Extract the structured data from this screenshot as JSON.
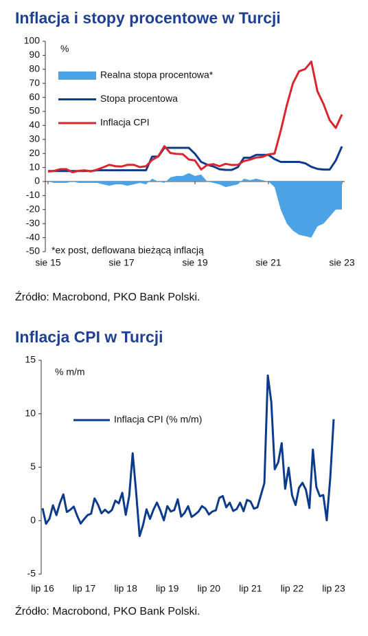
{
  "chart_data": [
    {
      "type": "line",
      "title": "Inflacja i stopy procentowe w Turcji",
      "unit_label": "%",
      "annotation": "*ex post, deflowana bieżącą inflacją",
      "source": "Źródło: Macrobond, PKO Bank Polski.",
      "categories": [
        "sie 15",
        null,
        null,
        null,
        null,
        null,
        null,
        null,
        null,
        null,
        null,
        null,
        "sie 17",
        null,
        null,
        null,
        null,
        null,
        null,
        null,
        null,
        null,
        null,
        null,
        "sie 19",
        null,
        null,
        null,
        null,
        null,
        null,
        null,
        null,
        null,
        null,
        null,
        "sie 21",
        null,
        null,
        null,
        null,
        null,
        null,
        null,
        null,
        null,
        null,
        null,
        "sie 23"
      ],
      "series": [
        {
          "name": "Realna stopa procentowa*",
          "color": "#4ba3e6",
          "kind": "area",
          "values": [
            0,
            -1,
            -1,
            -1,
            0,
            -1,
            -1,
            -1,
            -1,
            -2,
            -3,
            -2,
            -2,
            -3,
            -2,
            -1,
            -2,
            2,
            0,
            -1,
            3,
            4,
            4,
            6,
            4,
            5,
            0,
            -1,
            -2,
            -4,
            -3,
            -2,
            2,
            1,
            2,
            1,
            0,
            -4,
            -20,
            -30,
            -35,
            -38,
            -39,
            -40,
            -32,
            -30,
            -25,
            -20,
            -20
          ]
        },
        {
          "name": "Stopa procentowa",
          "color": "#0c3b8c",
          "kind": "line",
          "values": [
            7.5,
            7.5,
            7.5,
            7.5,
            7.5,
            7.5,
            7.5,
            7.5,
            8,
            8,
            8,
            8,
            8,
            8,
            8,
            8,
            8,
            17.75,
            17.75,
            24,
            24,
            24,
            24,
            24,
            19.75,
            14,
            12,
            10.75,
            8.75,
            8.25,
            8.25,
            10.25,
            17,
            17,
            19,
            19,
            19,
            16,
            14,
            14,
            14,
            14,
            13,
            10.5,
            9,
            8.5,
            8.5,
            15,
            25
          ]
        },
        {
          "name": "Inflacja CPI",
          "color": "#d9262e",
          "kind": "line",
          "values": [
            7.1,
            7.6,
            8.8,
            8.8,
            6.6,
            7.6,
            8.0,
            7.2,
            8.5,
            10.1,
            11.9,
            10.9,
            10.7,
            11.9,
            11.9,
            10.3,
            10.9,
            15.4,
            17.9,
            25.2,
            20.3,
            19.7,
            19.5,
            15.7,
            15.0,
            8.6,
            11.8,
            12.4,
            10.9,
            12.6,
            11.8,
            11.9,
            14.6,
            15.6,
            17.1,
            17.5,
            19.3,
            19.9,
            36.1,
            54.4,
            70.0,
            78.6,
            80.2,
            85.5,
            64.3,
            55.2,
            43.7,
            38.2,
            47.8
          ]
        }
      ],
      "ylim": [
        -50,
        100
      ],
      "yticks": [
        -50,
        -40,
        -30,
        -20,
        -10,
        0,
        10,
        20,
        30,
        40,
        50,
        60,
        70,
        80,
        90,
        100
      ],
      "zero_line": true,
      "legend": "upper-left"
    },
    {
      "type": "line",
      "title": "Inflacja CPI w Turcji",
      "unit_label": "% m/m",
      "source": "Źródło: Macrobond, PKO Bank Polski.",
      "categories": [
        "lip 16",
        null,
        null,
        null,
        null,
        null,
        null,
        null,
        null,
        null,
        null,
        null,
        "lip 17",
        null,
        null,
        null,
        null,
        null,
        null,
        null,
        null,
        null,
        null,
        null,
        "lip 18",
        null,
        null,
        null,
        null,
        null,
        null,
        null,
        null,
        null,
        null,
        null,
        "lip 19",
        null,
        null,
        null,
        null,
        null,
        null,
        null,
        null,
        null,
        null,
        null,
        "lip 20",
        null,
        null,
        null,
        null,
        null,
        null,
        null,
        null,
        null,
        null,
        null,
        "lip 21",
        null,
        null,
        null,
        null,
        null,
        null,
        null,
        null,
        null,
        null,
        null,
        "lip 22",
        null,
        null,
        null,
        null,
        null,
        null,
        null,
        null,
        null,
        null,
        null,
        "lip 23"
      ],
      "series": [
        {
          "name": "Inflacja CPI (% m/m)",
          "color": "#0c3b8c",
          "kind": "line",
          "values": [
            1.16,
            -0.29,
            0.18,
            1.44,
            0.52,
            1.64,
            2.46,
            0.81,
            1.02,
            1.31,
            0.45,
            -0.27,
            0.15,
            0.52,
            0.65,
            2.08,
            1.49,
            0.69,
            1.02,
            0.73,
            0.99,
            1.87,
            1.62,
            2.61,
            0.55,
            2.3,
            6.3,
            2.67,
            -1.44,
            -0.4,
            1.06,
            0.16,
            1.03,
            1.69,
            0.95,
            0.03,
            1.36,
            0.86,
            0.99,
            2.0,
            0.38,
            0.74,
            1.35,
            0.35,
            0.57,
            0.85,
            1.36,
            1.13,
            0.58,
            0.86,
            0.97,
            2.13,
            2.3,
            1.25,
            1.68,
            0.91,
            1.08,
            1.68,
            0.89,
            1.94,
            1.8,
            1.12,
            1.25,
            2.39,
            3.51,
            13.58,
            11.1,
            4.81,
            5.46,
            7.25,
            2.98,
            4.95,
            2.37,
            1.46,
            3.08,
            3.54,
            2.88,
            1.18,
            6.65,
            3.15,
            2.29,
            2.39,
            0.04,
            3.92,
            9.49
          ]
        }
      ],
      "ylim": [
        -5,
        15
      ],
      "yticks": [
        -5,
        0,
        5,
        10,
        15
      ],
      "zero_line": false,
      "legend": "upper-left"
    }
  ]
}
